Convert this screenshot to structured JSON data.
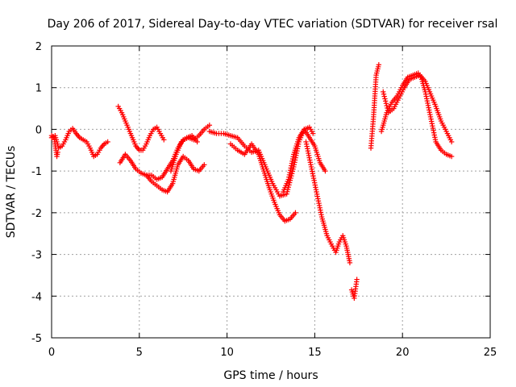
{
  "chart_data": {
    "type": "scatter",
    "title": "Day 206 of 2017, Sidereal Day-to-day VTEC variation (SDTVAR) for receiver rsal",
    "xlabel": "GPS time / hours",
    "ylabel": "SDTVAR / TECUs",
    "xlim": [
      0,
      25
    ],
    "ylim": [
      -5,
      2
    ],
    "xticks": [
      "0",
      "5",
      "10",
      "15",
      "20",
      "25"
    ],
    "yticks": [
      "-5",
      "-4",
      "-3",
      "-2",
      "-1",
      "0",
      "1",
      "2"
    ],
    "grid": true,
    "marker": "plus",
    "color": "#ff0000",
    "series": [
      {
        "name": "seg1",
        "x": [
          0.0,
          0.2,
          0.4,
          0.6,
          0.8,
          1.0,
          1.2,
          1.4,
          1.6,
          1.8,
          2.0,
          2.2,
          2.4,
          2.6,
          2.8,
          3.0,
          3.2
        ],
        "y": [
          -0.2,
          -0.15,
          -0.45,
          -0.4,
          -0.25,
          -0.05,
          0.02,
          -0.1,
          -0.2,
          -0.25,
          -0.3,
          -0.45,
          -0.65,
          -0.6,
          -0.45,
          -0.35,
          -0.3
        ]
      },
      {
        "name": "seg1b",
        "x": [
          0.0,
          0.15,
          0.25,
          0.3,
          0.35
        ],
        "y": [
          -0.15,
          -0.2,
          -0.5,
          -0.65,
          -0.55
        ]
      },
      {
        "name": "seg2",
        "x": [
          3.8,
          4.0,
          4.2,
          4.4,
          4.6,
          4.8,
          5.0,
          5.2,
          5.4,
          5.6,
          5.8,
          6.0,
          6.2,
          6.4
        ],
        "y": [
          0.55,
          0.4,
          0.2,
          0.0,
          -0.2,
          -0.4,
          -0.5,
          -0.5,
          -0.35,
          -0.15,
          0.0,
          0.05,
          -0.1,
          -0.25
        ]
      },
      {
        "name": "seg3",
        "x": [
          3.9,
          4.2,
          4.5,
          4.8,
          5.1,
          5.4,
          5.7,
          6.0,
          6.3,
          6.6,
          6.9,
          7.2,
          7.5,
          7.8,
          8.1,
          8.4,
          8.7,
          9.0
        ],
        "y": [
          -0.8,
          -0.6,
          -0.75,
          -0.95,
          -1.05,
          -1.1,
          -1.1,
          -1.2,
          -1.15,
          -0.95,
          -0.75,
          -0.45,
          -0.25,
          -0.2,
          -0.25,
          -0.15,
          0.0,
          0.1
        ]
      },
      {
        "name": "seg4",
        "x": [
          5.4,
          5.7,
          6.0,
          6.3,
          6.6,
          6.9,
          7.2,
          7.5,
          7.8,
          8.1,
          8.4,
          8.7
        ],
        "y": [
          -1.1,
          -1.25,
          -1.35,
          -1.45,
          -1.5,
          -1.3,
          -0.85,
          -0.65,
          -0.75,
          -0.95,
          -1.0,
          -0.85
        ]
      },
      {
        "name": "seg5",
        "x": [
          6.8,
          7.1,
          7.4,
          7.7,
          8.0,
          8.3
        ],
        "y": [
          -1.0,
          -0.6,
          -0.3,
          -0.2,
          -0.15,
          -0.3
        ]
      },
      {
        "name": "seg6",
        "x": [
          9.0,
          9.4,
          9.8,
          10.2,
          10.6,
          11.0,
          11.4,
          11.8,
          12.2,
          12.6,
          13.0,
          13.4,
          13.8,
          14.1,
          14.4,
          14.7,
          14.9
        ],
        "y": [
          -0.05,
          -0.1,
          -0.1,
          -0.15,
          -0.2,
          -0.4,
          -0.55,
          -0.5,
          -0.9,
          -1.3,
          -1.6,
          -1.55,
          -0.9,
          -0.3,
          0.0,
          0.05,
          -0.1
        ]
      },
      {
        "name": "seg7",
        "x": [
          10.2,
          10.6,
          11.0,
          11.4,
          11.8,
          12.1,
          12.4,
          12.7,
          13.0,
          13.3,
          13.6,
          13.9
        ],
        "y": [
          -0.35,
          -0.5,
          -0.6,
          -0.35,
          -0.6,
          -1.0,
          -1.4,
          -1.75,
          -2.05,
          -2.2,
          -2.15,
          -2.0
        ]
      },
      {
        "name": "seg8",
        "x": [
          13.2,
          13.5,
          13.8,
          14.1,
          14.4,
          14.7,
          15.0,
          15.3,
          15.6
        ],
        "y": [
          -1.5,
          -1.2,
          -0.6,
          -0.2,
          0.0,
          -0.2,
          -0.4,
          -0.8,
          -1.0
        ]
      },
      {
        "name": "seg9",
        "x": [
          14.5,
          14.8,
          15.1,
          15.4,
          15.7,
          16.0,
          16.2,
          16.4,
          16.6,
          16.8,
          17.0
        ],
        "y": [
          -0.3,
          -0.9,
          -1.5,
          -2.1,
          -2.55,
          -2.8,
          -2.95,
          -2.7,
          -2.55,
          -2.8,
          -3.2
        ]
      },
      {
        "name": "seg10",
        "x": [
          17.1,
          17.25,
          17.4
        ],
        "y": [
          -3.85,
          -4.05,
          -3.6
        ]
      },
      {
        "name": "seg11",
        "x": [
          18.2,
          18.35,
          18.5,
          18.65
        ],
        "y": [
          -0.45,
          0.3,
          1.3,
          1.55
        ]
      },
      {
        "name": "seg12",
        "x": [
          18.8,
          19.1,
          19.4,
          19.7,
          20.0,
          20.3,
          20.6,
          20.9,
          21.1,
          21.3,
          21.6,
          21.9,
          22.2,
          22.5,
          22.8
        ],
        "y": [
          -0.05,
          0.4,
          0.65,
          0.8,
          1.05,
          1.25,
          1.3,
          1.35,
          1.2,
          0.9,
          0.3,
          -0.3,
          -0.5,
          -0.6,
          -0.65
        ]
      },
      {
        "name": "seg13",
        "x": [
          18.9,
          19.2,
          19.5,
          19.8,
          20.1,
          20.4,
          20.7,
          21.0,
          21.3,
          21.6,
          21.9,
          22.2,
          22.5,
          22.8
        ],
        "y": [
          0.9,
          0.4,
          0.5,
          0.75,
          1.0,
          1.2,
          1.25,
          1.3,
          1.15,
          0.85,
          0.55,
          0.2,
          -0.05,
          -0.3
        ]
      }
    ]
  }
}
